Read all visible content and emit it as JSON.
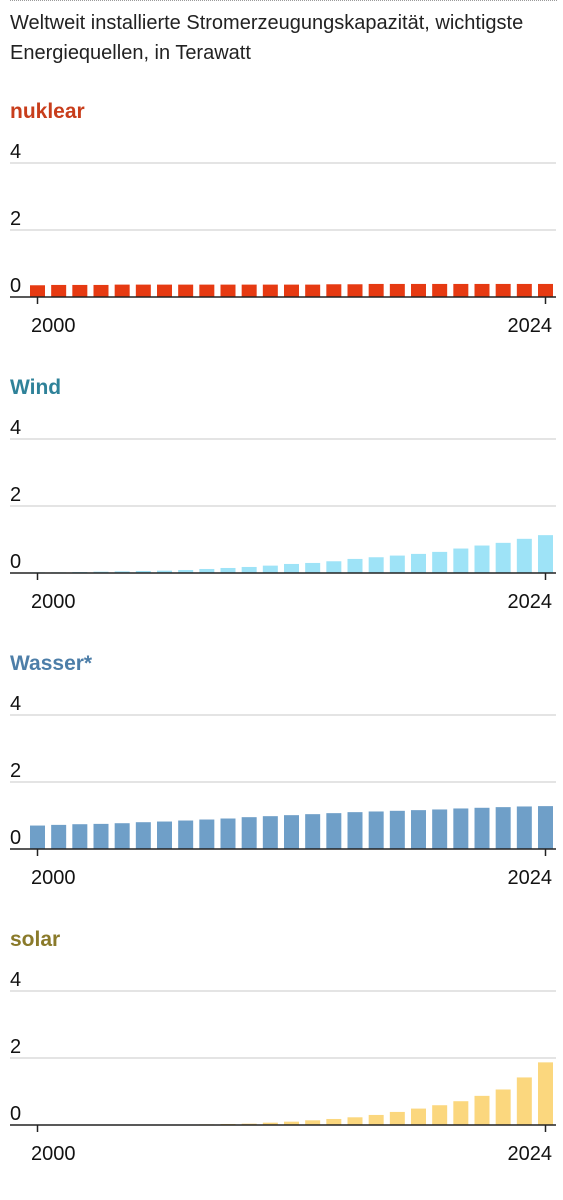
{
  "header": {
    "subtitle": "Weltweit installierte Stromerzeugungskapazität, wichtigste Energiequellen, in Terawatt"
  },
  "chart_data": [
    {
      "type": "bar",
      "title": "nuklear",
      "title_color": "#c83d1b",
      "bar_color": "#e63a12",
      "x_start": 2000,
      "x_end": 2024,
      "x_ticks": [
        "2000",
        "2024"
      ],
      "y_ticks": [
        "0",
        "2",
        "4"
      ],
      "ylim": [
        0,
        4
      ],
      "grid": true,
      "values": [
        0.35,
        0.36,
        0.36,
        0.36,
        0.37,
        0.37,
        0.37,
        0.37,
        0.37,
        0.37,
        0.37,
        0.37,
        0.37,
        0.37,
        0.38,
        0.38,
        0.39,
        0.39,
        0.39,
        0.39,
        0.39,
        0.39,
        0.39,
        0.39,
        0.39
      ]
    },
    {
      "type": "bar",
      "title": "Wind",
      "title_color": "#2f8299",
      "bar_color": "#9ee3f7",
      "x_start": 2000,
      "x_end": 2024,
      "x_ticks": [
        "2000",
        "2024"
      ],
      "y_ticks": [
        "0",
        "2",
        "4"
      ],
      "ylim": [
        0,
        4
      ],
      "grid": true,
      "values": [
        0.02,
        0.02,
        0.03,
        0.04,
        0.05,
        0.06,
        0.07,
        0.09,
        0.12,
        0.15,
        0.18,
        0.22,
        0.27,
        0.3,
        0.35,
        0.42,
        0.47,
        0.52,
        0.57,
        0.63,
        0.73,
        0.82,
        0.9,
        1.02,
        1.13
      ]
    },
    {
      "type": "bar",
      "title": "Wasser*",
      "title_color": "#4d7ea8",
      "bar_color": "#6f9fc8",
      "x_start": 2000,
      "x_end": 2024,
      "x_ticks": [
        "2000",
        "2024"
      ],
      "y_ticks": [
        "0",
        "2",
        "4"
      ],
      "ylim": [
        0,
        4
      ],
      "grid": true,
      "values": [
        0.7,
        0.72,
        0.74,
        0.75,
        0.77,
        0.8,
        0.82,
        0.85,
        0.88,
        0.91,
        0.95,
        0.98,
        1.01,
        1.04,
        1.07,
        1.1,
        1.12,
        1.14,
        1.16,
        1.18,
        1.21,
        1.23,
        1.25,
        1.27,
        1.28
      ]
    },
    {
      "type": "bar",
      "title": "solar",
      "title_color": "#8a7a2a",
      "bar_color": "#fbd77e",
      "x_start": 2000,
      "x_end": 2024,
      "x_ticks": [
        "2000",
        "2024"
      ],
      "y_ticks": [
        "0",
        "2",
        "4"
      ],
      "ylim": [
        0,
        4
      ],
      "grid": true,
      "values": [
        0.0,
        0.0,
        0.0,
        0.0,
        0.0,
        0.01,
        0.01,
        0.01,
        0.02,
        0.03,
        0.04,
        0.07,
        0.1,
        0.14,
        0.18,
        0.23,
        0.3,
        0.39,
        0.49,
        0.59,
        0.71,
        0.87,
        1.06,
        1.42,
        1.87
      ]
    }
  ]
}
